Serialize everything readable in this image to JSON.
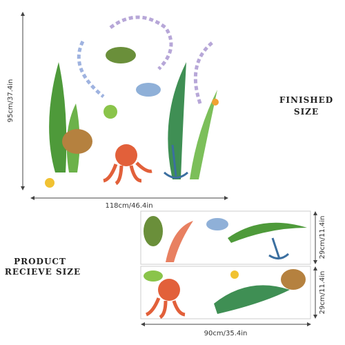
{
  "finished": {
    "height": "95cm/37.4in",
    "width": "118cm/46.4in",
    "caption": [
      "FINISHED",
      "SIZE"
    ]
  },
  "received": {
    "caption": [
      "PRODUCT",
      "RECIEVE SIZE"
    ],
    "panel_heights": [
      "29cm/11.4in",
      "29cm/11.4in"
    ],
    "panel_width": "90cm/35.4in"
  }
}
